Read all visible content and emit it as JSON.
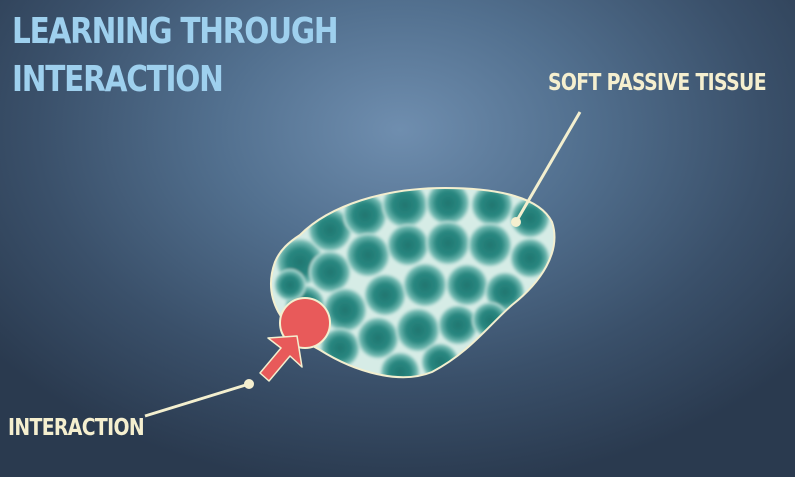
{
  "title": {
    "line1": "LEARNING THROUGH",
    "line2": "INTERACTION"
  },
  "labels": {
    "tissue": "SOFT PASSIVE TISSUE",
    "interaction": "INTERACTION"
  },
  "colors": {
    "title": "#9ed0ee",
    "label": "#f5efcf",
    "tissue_fill": "#2d8a84",
    "tissue_outline": "#f3efcf",
    "probe": "#e85a5a",
    "arrow": "#e85a5a",
    "background": "#52708f"
  }
}
